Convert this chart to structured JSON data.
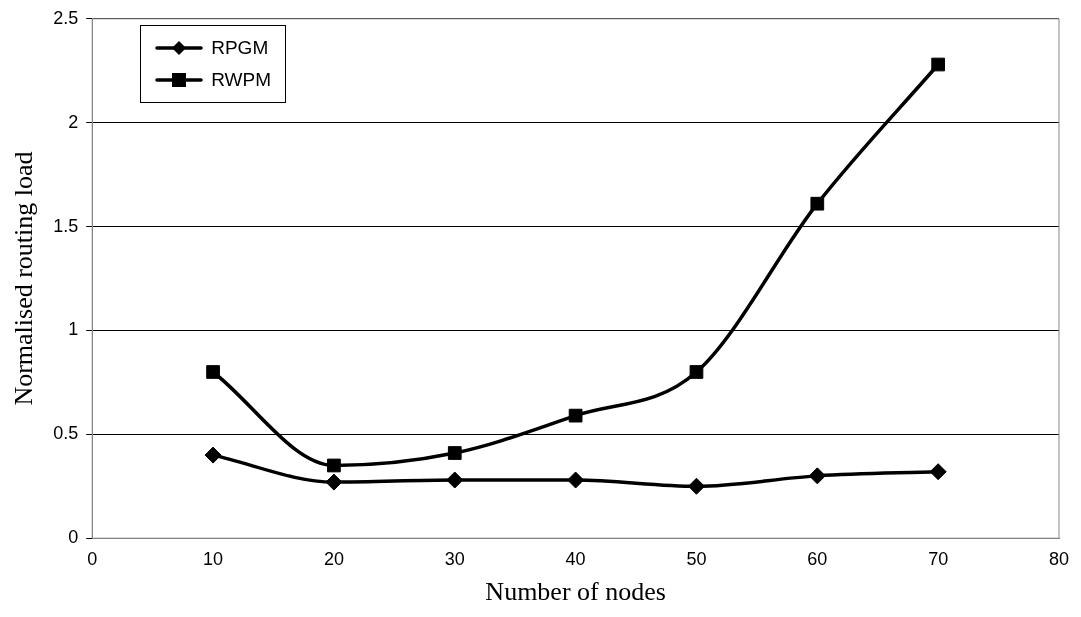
{
  "chart_data": {
    "type": "line",
    "xlabel": "Number of nodes",
    "ylabel": "Normalised routing load",
    "x": [
      10,
      20,
      30,
      40,
      50,
      60,
      70
    ],
    "series": [
      {
        "name": "RPGM",
        "color": "#000000",
        "marker": "diamond",
        "values": [
          0.4,
          0.27,
          0.28,
          0.28,
          0.25,
          0.3,
          0.32
        ]
      },
      {
        "name": "RWPM",
        "color": "#000000",
        "marker": "square",
        "values": [
          0.8,
          0.35,
          0.41,
          0.59,
          0.8,
          1.61,
          2.28
        ]
      }
    ],
    "xlim": [
      0,
      80
    ],
    "xticks": [
      0,
      10,
      20,
      30,
      40,
      50,
      60,
      70,
      80
    ],
    "ylim": [
      0,
      2.5
    ],
    "yticks": [
      0,
      0.5,
      1,
      1.5,
      2,
      2.5
    ],
    "grid": "y",
    "legend": "top left",
    "line_style": "solid"
  }
}
